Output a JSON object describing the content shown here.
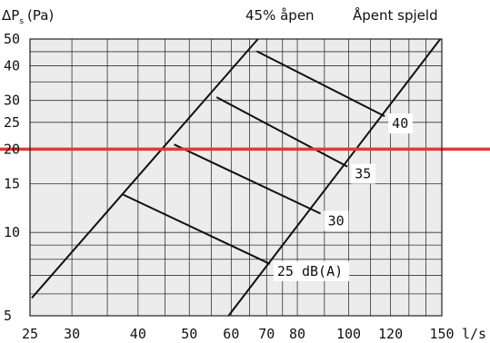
{
  "chart_data": {
    "type": "line",
    "x_scale": "log",
    "y_scale": "log",
    "xlim": [
      25,
      150
    ],
    "ylim": [
      5,
      50
    ],
    "x_unit": "l/s",
    "y_label_main": "ΔP",
    "y_label_sub": "s",
    "y_label_unit": "(Pa)",
    "x_ticks": [
      25,
      30,
      40,
      50,
      60,
      70,
      80,
      100,
      120,
      150
    ],
    "y_ticks": [
      5,
      10,
      15,
      20,
      25,
      30,
      40,
      50
    ],
    "x_gridlines": [
      25,
      30,
      35,
      40,
      45,
      50,
      55,
      60,
      65,
      70,
      75,
      80,
      90,
      100,
      110,
      120,
      130,
      140,
      150
    ],
    "y_gridlines": [
      5,
      6,
      7,
      8,
      9,
      10,
      15,
      20,
      25,
      30,
      35,
      40,
      45,
      50
    ],
    "grid": true,
    "background": "#ececec",
    "highlight_color": "#e53935",
    "series": [
      {
        "name": "45% åpen",
        "x": [
          25.2,
          67.4
        ],
        "y": [
          5.8,
          50
        ]
      },
      {
        "name": "Åpent spjeld",
        "x": [
          59.3,
          149
        ],
        "y": [
          5,
          50
        ]
      }
    ],
    "sound_lines": [
      {
        "label": "25 dB(A)",
        "x": [
          37.5,
          71
        ],
        "y": [
          13.7,
          7.7
        ]
      },
      {
        "label": "30",
        "x": [
          46.8,
          88.5
        ],
        "y": [
          20.8,
          11.7
        ]
      },
      {
        "label": "35",
        "x": [
          56.3,
          99.5
        ],
        "y": [
          30.8,
          17.3
        ]
      },
      {
        "label": "40",
        "x": [
          67,
          117
        ],
        "y": [
          45.2,
          26.3
        ]
      }
    ],
    "reference_line": {
      "y": 20
    }
  }
}
